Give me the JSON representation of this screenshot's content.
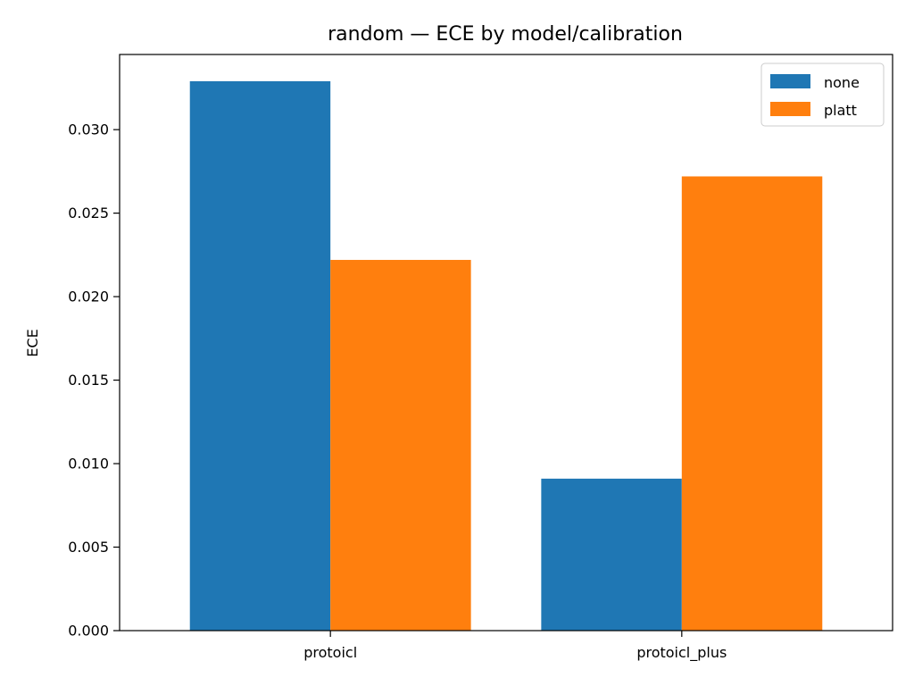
{
  "chart_data": {
    "type": "bar",
    "title": "random — ECE by model/calibration",
    "xlabel": "",
    "ylabel": "ECE",
    "categories": [
      "protoicl",
      "protoicl_plus"
    ],
    "series": [
      {
        "name": "none",
        "color": "#1f77b4",
        "values": [
          0.0329,
          0.0091
        ]
      },
      {
        "name": "platt",
        "color": "#ff7f0e",
        "values": [
          0.0222,
          0.0272
        ]
      }
    ],
    "ylim": [
      0,
      0.0345
    ],
    "yticks": [
      0.0,
      0.005,
      0.01,
      0.015,
      0.02,
      0.025,
      0.03
    ],
    "ytick_labels": [
      "0.000",
      "0.005",
      "0.010",
      "0.015",
      "0.020",
      "0.025",
      "0.030"
    ],
    "grid": false,
    "legend_position": "top-right"
  }
}
